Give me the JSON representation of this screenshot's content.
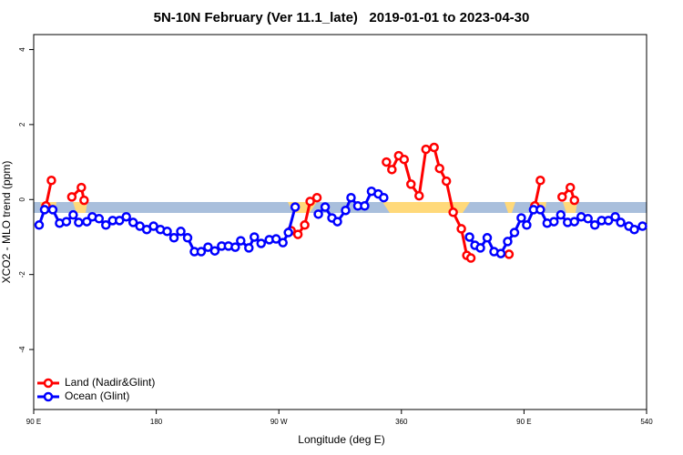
{
  "chart_data": {
    "type": "line",
    "title": "5N-10N February (Ver 11.1_late)   2019-01-01 to 2023-04-30",
    "x_label": "Longitude (deg E)",
    "y_label": "XCO2 - MLO trend (ppm)",
    "xlim": [
      90,
      540
    ],
    "xticks": [
      {
        "value": 90,
        "label": "90 E"
      },
      180,
      {
        "value": 270,
        "label": "90 W"
      },
      360,
      {
        "value": 450,
        "label": "90 E"
      },
      540
    ],
    "ylim": [
      -5.6,
      4.4
    ],
    "yticks": [
      -4,
      -2,
      0,
      2,
      4
    ],
    "legend": "bottom-left",
    "series": [
      {
        "name": "Land (Nadir&Glint)",
        "color": "#ff0000",
        "x": [
          99,
          103,
          110,
          118,
          125,
          127,
          200,
          279,
          284,
          289,
          293,
          298,
          320,
          349,
          353,
          358,
          362,
          367,
          373,
          378,
          384,
          388,
          393,
          398,
          404,
          408,
          411,
          425,
          439,
          450,
          458,
          462,
          470,
          478,
          484,
          487
        ],
        "values": [
          -0.17,
          0.51,
          null,
          0.07,
          0.32,
          -0.02,
          null,
          -0.83,
          -0.93,
          -0.68,
          -0.05,
          0.05,
          null,
          1.0,
          0.8,
          1.17,
          1.07,
          0.41,
          0.1,
          1.34,
          1.39,
          0.83,
          0.49,
          -0.34,
          -0.78,
          -1.49,
          -1.56,
          null,
          -1.46,
          null,
          -0.17,
          0.51,
          null,
          0.07,
          0.32,
          -0.02
        ]
      },
      {
        "name": "Ocean (Glint)",
        "color": "#0000ff",
        "x": [
          94,
          98,
          104,
          109,
          114,
          119,
          123,
          129,
          133,
          138,
          143,
          148,
          153,
          158,
          163,
          168,
          173,
          178,
          183,
          188,
          193,
          198,
          203,
          208,
          213,
          218,
          223,
          228,
          233,
          238,
          242,
          248,
          252,
          257,
          263,
          268,
          273,
          277,
          282,
          290,
          299,
          304,
          309,
          313,
          319,
          323,
          328,
          333,
          338,
          343,
          347,
          380,
          410,
          414,
          418,
          423,
          428,
          433,
          438,
          443,
          448,
          452,
          457,
          462,
          467,
          472,
          477,
          482,
          487,
          492,
          497,
          502,
          507,
          512,
          517,
          521,
          527,
          531,
          537
        ],
        "values": [
          -0.68,
          -0.27,
          -0.27,
          -0.63,
          -0.59,
          -0.41,
          -0.61,
          -0.59,
          -0.46,
          -0.51,
          -0.68,
          -0.56,
          -0.56,
          -0.46,
          -0.61,
          -0.71,
          -0.8,
          -0.71,
          -0.8,
          -0.85,
          -1.02,
          -0.85,
          -1.02,
          -1.39,
          -1.39,
          -1.27,
          -1.37,
          -1.24,
          -1.24,
          -1.27,
          -1.1,
          -1.29,
          -1.0,
          -1.17,
          -1.07,
          -1.05,
          -1.15,
          -0.88,
          -0.2,
          null,
          -0.39,
          -0.2,
          -0.49,
          -0.59,
          -0.29,
          0.05,
          -0.17,
          -0.17,
          0.22,
          0.15,
          0.05,
          null,
          -1.0,
          -1.22,
          -1.29,
          -1.02,
          -1.39,
          -1.44,
          -1.12,
          -0.88,
          -0.49,
          -0.68,
          -0.27,
          -0.27,
          -0.63,
          -0.59,
          -0.41,
          -0.61,
          -0.59,
          -0.46,
          -0.51,
          -0.68,
          -0.56,
          -0.56,
          -0.46,
          -0.61,
          -0.71,
          -0.8,
          -0.71
        ]
      }
    ]
  }
}
